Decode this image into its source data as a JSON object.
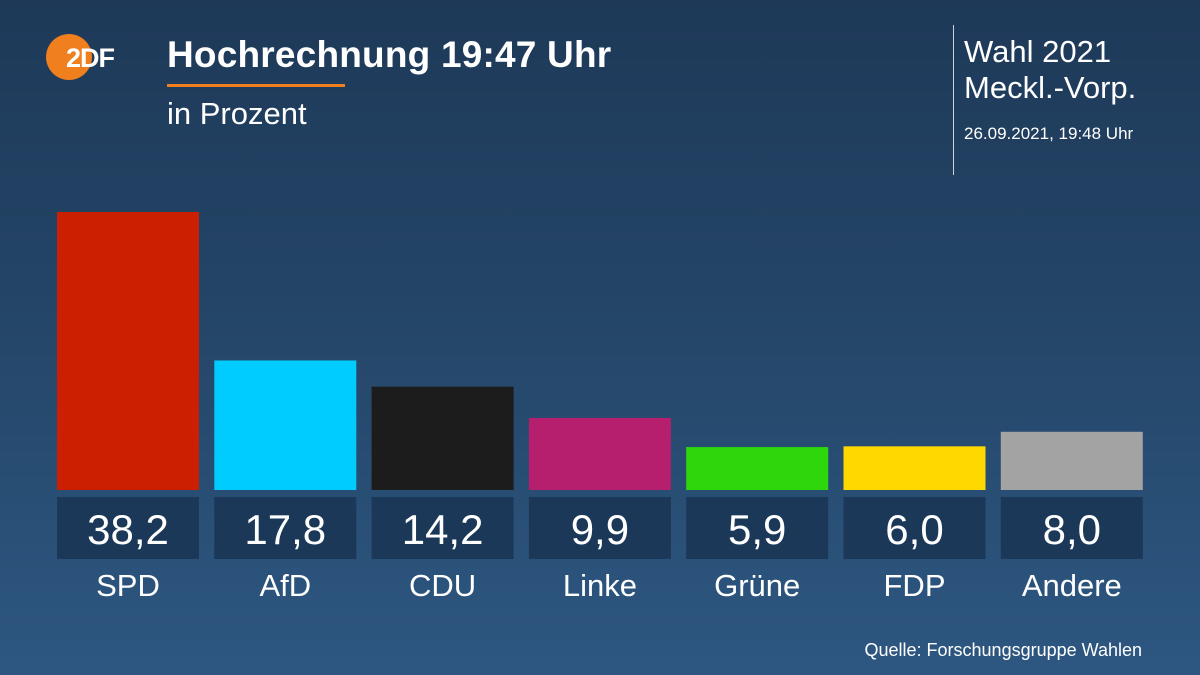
{
  "header": {
    "logo_text": "2DF",
    "title": "Hochrechnung 19:47 Uhr",
    "subtitle": "in Prozent",
    "election_line1": "Wahl 2021",
    "election_line2": "Meckl.-Vorp.",
    "timestamp": "26.09.2021, 19:48 Uhr"
  },
  "footer": {
    "source": "Quelle: Forschungsgruppe Wahlen"
  },
  "chart_data": {
    "type": "bar",
    "title": "Hochrechnung 19:47 Uhr",
    "subtitle": "in Prozent",
    "xlabel": "",
    "ylabel": "in Prozent",
    "ylim": [
      0,
      38.2
    ],
    "grid": false,
    "categories": [
      "SPD",
      "AfD",
      "CDU",
      "Linke",
      "Grüne",
      "FDP",
      "Andere"
    ],
    "values": [
      38.2,
      17.8,
      14.2,
      9.9,
      5.9,
      6.0,
      8.0
    ],
    "value_labels": [
      "38,2",
      "17,8",
      "14,2",
      "9,9",
      "5,9",
      "6,0",
      "8,0"
    ],
    "colors": [
      "#cc1e00",
      "#00ccff",
      "#1c1c1c",
      "#b61f6d",
      "#2ed70c",
      "#ffd800",
      "#a3a3a3"
    ]
  }
}
